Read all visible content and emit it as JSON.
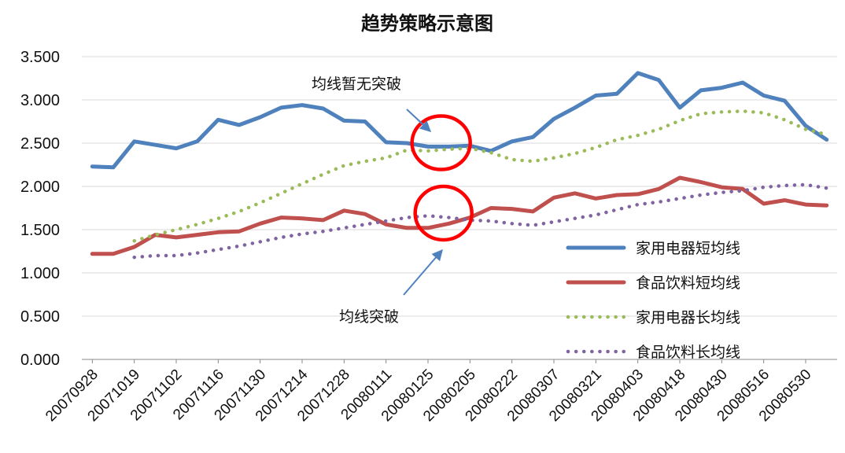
{
  "chart_data": {
    "type": "line",
    "title": "趋势策略示意图",
    "ylim": [
      0,
      3.5
    ],
    "yticks": [
      "0.000",
      "0.500",
      "1.000",
      "1.500",
      "2.000",
      "2.500",
      "3.000",
      "3.500"
    ],
    "x_tick_labels": [
      "20070928",
      "20071019",
      "20071102",
      "20071116",
      "20071130",
      "20071214",
      "20071228",
      "20080111",
      "20080125",
      "20080205",
      "20080222",
      "20080307",
      "20080321",
      "20080403",
      "20080418",
      "20080430",
      "20080516",
      "20080530"
    ],
    "grid": true,
    "legend_position": "right",
    "series": [
      {
        "name": "家用电器短均线",
        "color": "#4f81bd",
        "style": "solid",
        "values": [
          2.23,
          2.22,
          2.52,
          2.48,
          2.44,
          2.52,
          2.77,
          2.71,
          2.8,
          2.91,
          2.94,
          2.9,
          2.76,
          2.75,
          2.51,
          2.5,
          2.46,
          2.46,
          2.47,
          2.41,
          2.52,
          2.57,
          2.78,
          2.91,
          3.05,
          3.07,
          3.31,
          3.23,
          2.91,
          3.11,
          3.14,
          3.2,
          3.05,
          2.99,
          2.7,
          2.54
        ]
      },
      {
        "name": "食品饮料短均线",
        "color": "#c0504d",
        "style": "solid",
        "values": [
          1.22,
          1.22,
          1.3,
          1.44,
          1.41,
          1.44,
          1.47,
          1.48,
          1.57,
          1.64,
          1.63,
          1.61,
          1.72,
          1.68,
          1.56,
          1.52,
          1.52,
          1.57,
          1.64,
          1.75,
          1.74,
          1.71,
          1.87,
          1.92,
          1.86,
          1.9,
          1.91,
          1.97,
          2.1,
          2.05,
          1.99,
          1.97,
          1.8,
          1.84,
          1.79,
          1.78
        ]
      },
      {
        "name": "家用电器长均线",
        "color": "#9bbb59",
        "style": "dotted",
        "values": [
          null,
          null,
          1.37,
          1.44,
          1.5,
          1.56,
          1.63,
          1.71,
          1.81,
          1.92,
          2.03,
          2.14,
          2.24,
          2.29,
          2.33,
          2.42,
          2.41,
          2.43,
          2.44,
          2.39,
          2.31,
          2.29,
          2.33,
          2.38,
          2.45,
          2.54,
          2.59,
          2.66,
          2.76,
          2.84,
          2.86,
          2.87,
          2.85,
          2.77,
          2.66,
          2.6
        ]
      },
      {
        "name": "食品饮料长均线",
        "color": "#8064a2",
        "style": "dotted",
        "values": [
          null,
          null,
          1.18,
          1.2,
          1.2,
          1.23,
          1.27,
          1.31,
          1.36,
          1.41,
          1.45,
          1.48,
          1.52,
          1.56,
          1.6,
          1.64,
          1.66,
          1.64,
          1.61,
          1.6,
          1.57,
          1.55,
          1.59,
          1.63,
          1.67,
          1.73,
          1.79,
          1.82,
          1.86,
          1.9,
          1.93,
          1.95,
          1.99,
          2.01,
          2.02,
          1.98
        ]
      }
    ],
    "annotations": [
      {
        "text": "均线暂无突破",
        "at_index": 17,
        "at_value": 2.45
      },
      {
        "text": "均线突破",
        "at_index": 17,
        "at_value": 1.6
      }
    ]
  }
}
